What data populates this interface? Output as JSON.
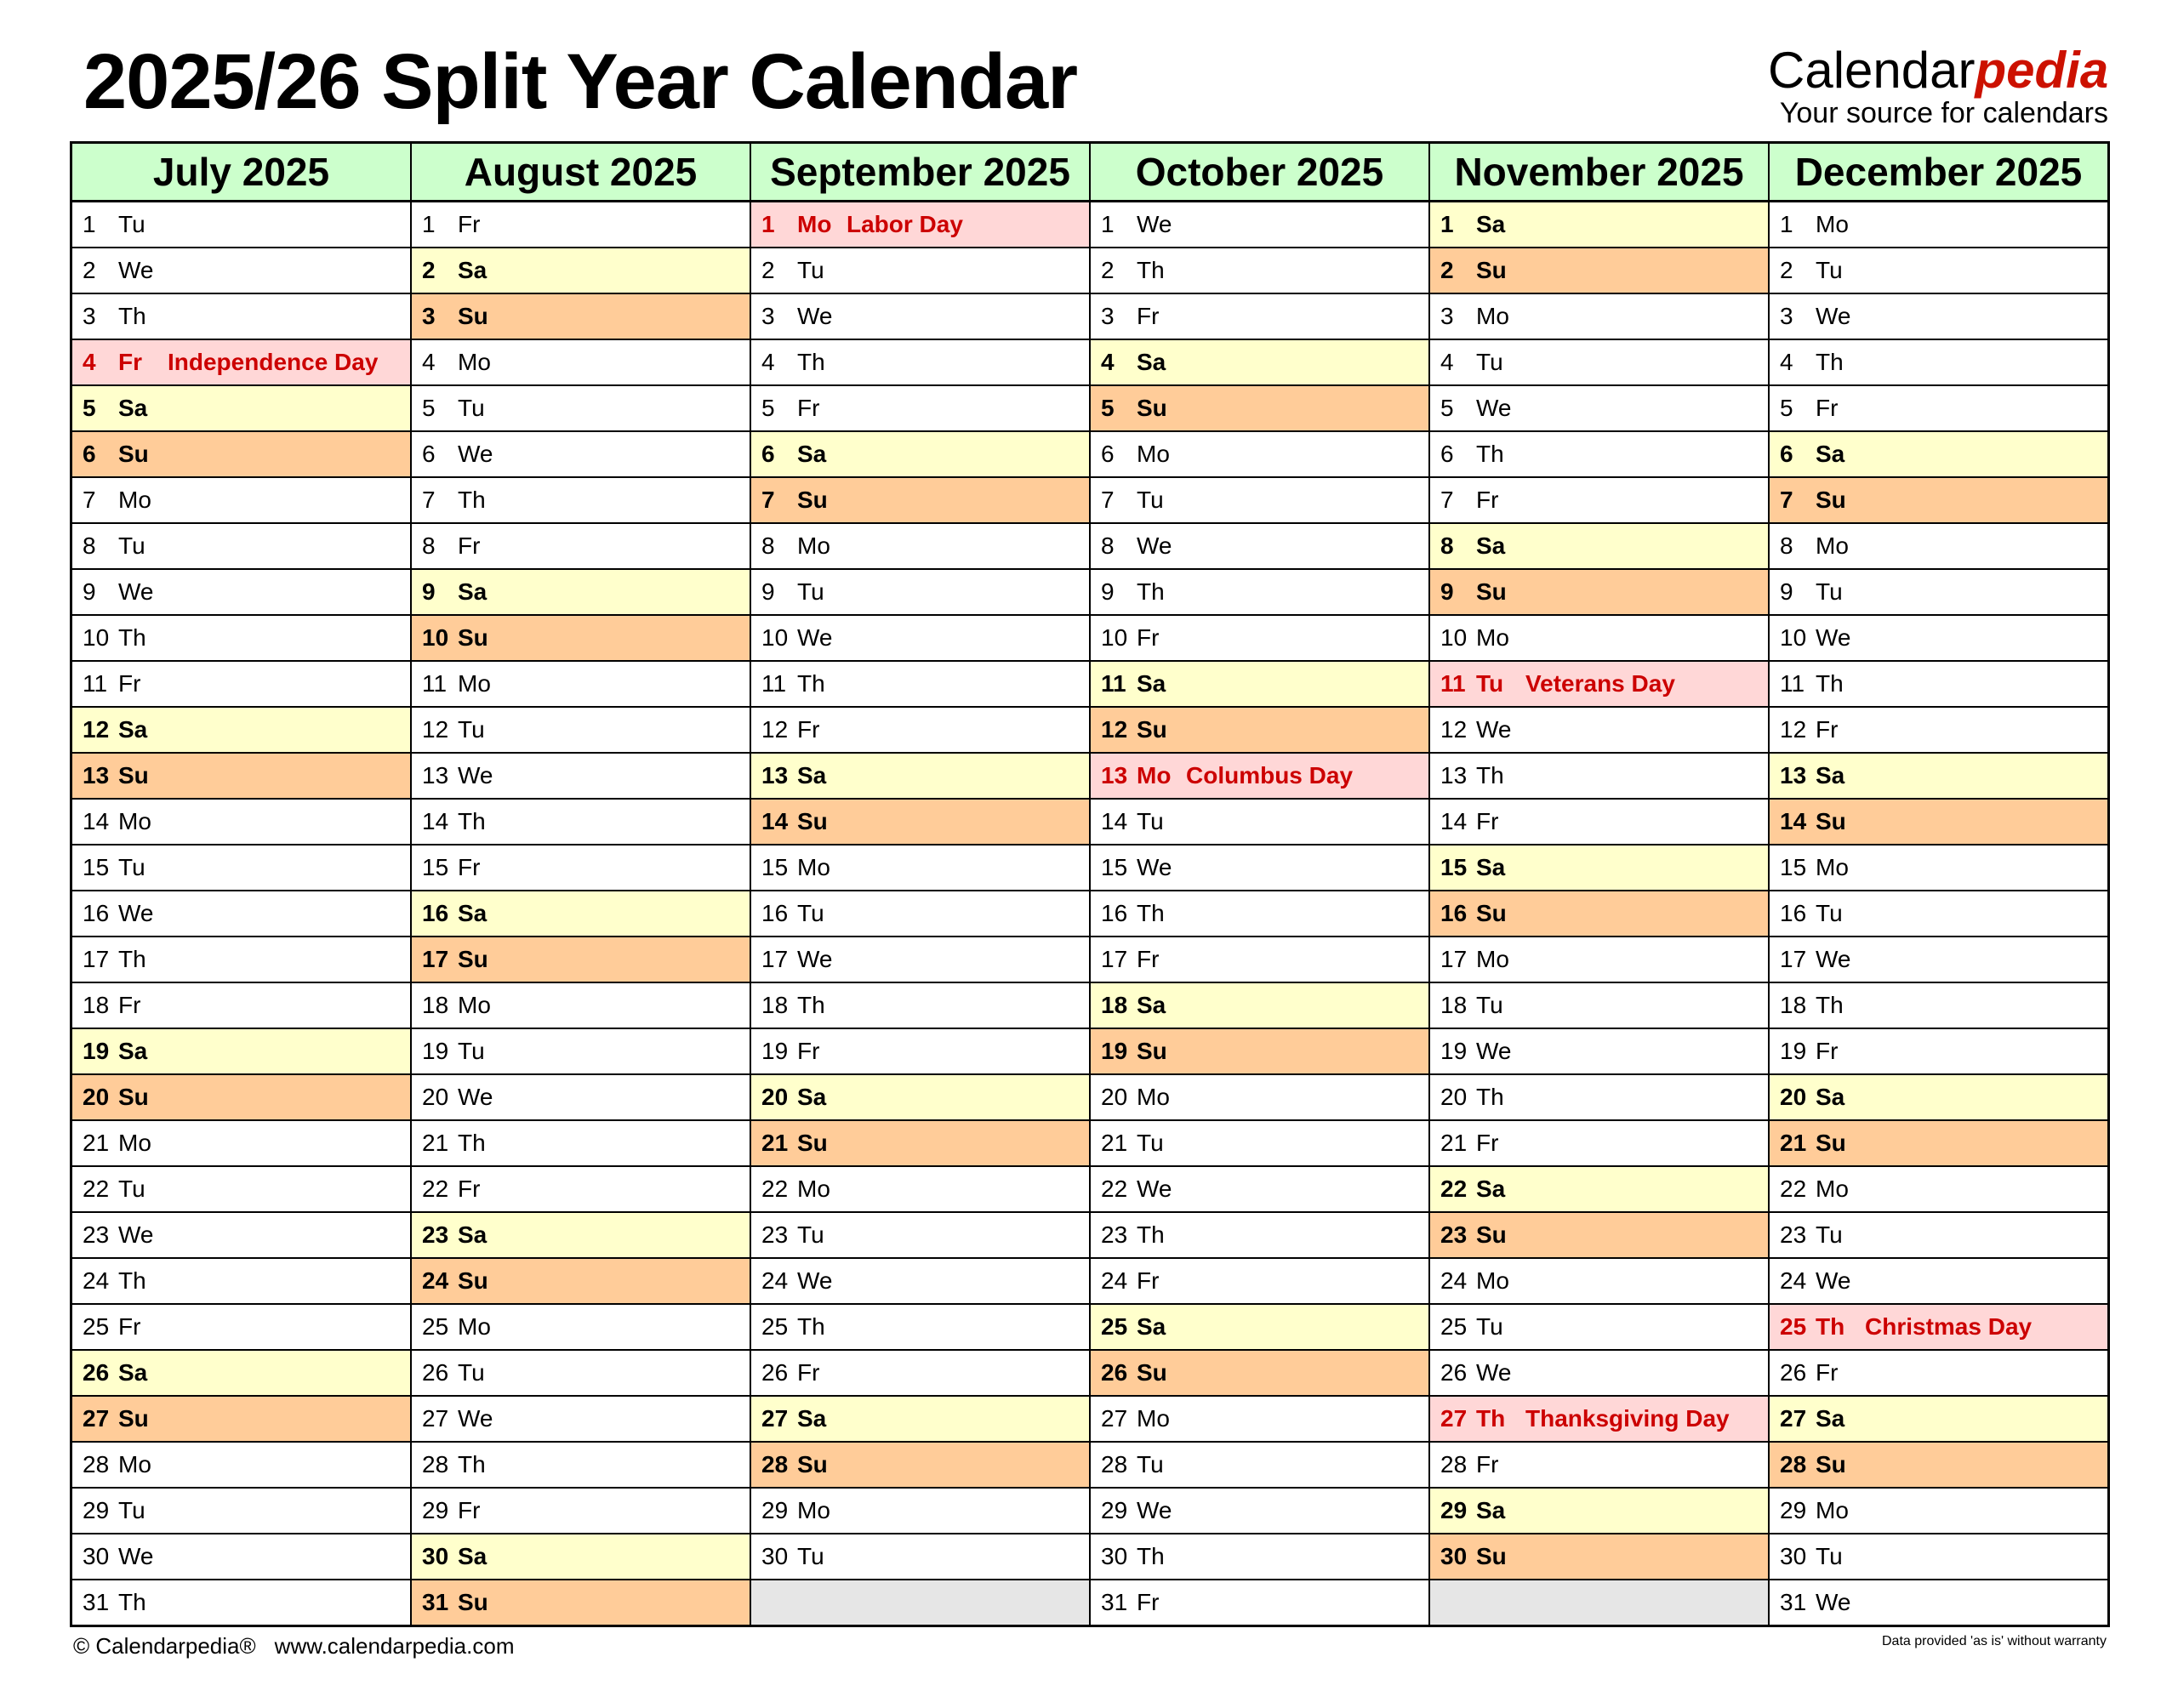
{
  "title": "2025/26 Split Year Calendar",
  "logo": {
    "main": "Calendar",
    "accent": "pedia",
    "tagline": "Your source for calendars"
  },
  "footer": {
    "copyright": "© Calendarpedia®",
    "url": "www.calendarpedia.com",
    "disclaimer": "Data provided 'as is' without warranty"
  },
  "colors": {
    "header": "#ccffcc",
    "saturday": "#ffffcc",
    "sunday": "#ffcc99",
    "holiday_bg": "#ffd7d7",
    "holiday_text": "#cc0000",
    "empty": "#e6e6e6"
  },
  "months": [
    {
      "name": "July 2025",
      "days": [
        [
          "1",
          "Tu"
        ],
        [
          "2",
          "We"
        ],
        [
          "3",
          "Th"
        ],
        [
          "4",
          "Fr"
        ],
        [
          "5",
          "Sa"
        ],
        [
          "6",
          "Su"
        ],
        [
          "7",
          "Mo"
        ],
        [
          "8",
          "Tu"
        ],
        [
          "9",
          "We"
        ],
        [
          "10",
          "Th"
        ],
        [
          "11",
          "Fr"
        ],
        [
          "12",
          "Sa"
        ],
        [
          "13",
          "Su"
        ],
        [
          "14",
          "Mo"
        ],
        [
          "15",
          "Tu"
        ],
        [
          "16",
          "We"
        ],
        [
          "17",
          "Th"
        ],
        [
          "18",
          "Fr"
        ],
        [
          "19",
          "Sa"
        ],
        [
          "20",
          "Su"
        ],
        [
          "21",
          "Mo"
        ],
        [
          "22",
          "Tu"
        ],
        [
          "23",
          "We"
        ],
        [
          "24",
          "Th"
        ],
        [
          "25",
          "Fr"
        ],
        [
          "26",
          "Sa"
        ],
        [
          "27",
          "Su"
        ],
        [
          "28",
          "Mo"
        ],
        [
          "29",
          "Tu"
        ],
        [
          "30",
          "We"
        ],
        [
          "31",
          "Th"
        ]
      ],
      "holidays": {
        "4": "Independence Day"
      }
    },
    {
      "name": "August 2025",
      "days": [
        [
          "1",
          "Fr"
        ],
        [
          "2",
          "Sa"
        ],
        [
          "3",
          "Su"
        ],
        [
          "4",
          "Mo"
        ],
        [
          "5",
          "Tu"
        ],
        [
          "6",
          "We"
        ],
        [
          "7",
          "Th"
        ],
        [
          "8",
          "Fr"
        ],
        [
          "9",
          "Sa"
        ],
        [
          "10",
          "Su"
        ],
        [
          "11",
          "Mo"
        ],
        [
          "12",
          "Tu"
        ],
        [
          "13",
          "We"
        ],
        [
          "14",
          "Th"
        ],
        [
          "15",
          "Fr"
        ],
        [
          "16",
          "Sa"
        ],
        [
          "17",
          "Su"
        ],
        [
          "18",
          "Mo"
        ],
        [
          "19",
          "Tu"
        ],
        [
          "20",
          "We"
        ],
        [
          "21",
          "Th"
        ],
        [
          "22",
          "Fr"
        ],
        [
          "23",
          "Sa"
        ],
        [
          "24",
          "Su"
        ],
        [
          "25",
          "Mo"
        ],
        [
          "26",
          "Tu"
        ],
        [
          "27",
          "We"
        ],
        [
          "28",
          "Th"
        ],
        [
          "29",
          "Fr"
        ],
        [
          "30",
          "Sa"
        ],
        [
          "31",
          "Su"
        ]
      ],
      "holidays": {}
    },
    {
      "name": "September 2025",
      "days": [
        [
          "1",
          "Mo"
        ],
        [
          "2",
          "Tu"
        ],
        [
          "3",
          "We"
        ],
        [
          "4",
          "Th"
        ],
        [
          "5",
          "Fr"
        ],
        [
          "6",
          "Sa"
        ],
        [
          "7",
          "Su"
        ],
        [
          "8",
          "Mo"
        ],
        [
          "9",
          "Tu"
        ],
        [
          "10",
          "We"
        ],
        [
          "11",
          "Th"
        ],
        [
          "12",
          "Fr"
        ],
        [
          "13",
          "Sa"
        ],
        [
          "14",
          "Su"
        ],
        [
          "15",
          "Mo"
        ],
        [
          "16",
          "Tu"
        ],
        [
          "17",
          "We"
        ],
        [
          "18",
          "Th"
        ],
        [
          "19",
          "Fr"
        ],
        [
          "20",
          "Sa"
        ],
        [
          "21",
          "Su"
        ],
        [
          "22",
          "Mo"
        ],
        [
          "23",
          "Tu"
        ],
        [
          "24",
          "We"
        ],
        [
          "25",
          "Th"
        ],
        [
          "26",
          "Fr"
        ],
        [
          "27",
          "Sa"
        ],
        [
          "28",
          "Su"
        ],
        [
          "29",
          "Mo"
        ],
        [
          "30",
          "Tu"
        ]
      ],
      "holidays": {
        "1": "Labor Day"
      }
    },
    {
      "name": "October 2025",
      "days": [
        [
          "1",
          "We"
        ],
        [
          "2",
          "Th"
        ],
        [
          "3",
          "Fr"
        ],
        [
          "4",
          "Sa"
        ],
        [
          "5",
          "Su"
        ],
        [
          "6",
          "Mo"
        ],
        [
          "7",
          "Tu"
        ],
        [
          "8",
          "We"
        ],
        [
          "9",
          "Th"
        ],
        [
          "10",
          "Fr"
        ],
        [
          "11",
          "Sa"
        ],
        [
          "12",
          "Su"
        ],
        [
          "13",
          "Mo"
        ],
        [
          "14",
          "Tu"
        ],
        [
          "15",
          "We"
        ],
        [
          "16",
          "Th"
        ],
        [
          "17",
          "Fr"
        ],
        [
          "18",
          "Sa"
        ],
        [
          "19",
          "Su"
        ],
        [
          "20",
          "Mo"
        ],
        [
          "21",
          "Tu"
        ],
        [
          "22",
          "We"
        ],
        [
          "23",
          "Th"
        ],
        [
          "24",
          "Fr"
        ],
        [
          "25",
          "Sa"
        ],
        [
          "26",
          "Su"
        ],
        [
          "27",
          "Mo"
        ],
        [
          "28",
          "Tu"
        ],
        [
          "29",
          "We"
        ],
        [
          "30",
          "Th"
        ],
        [
          "31",
          "Fr"
        ]
      ],
      "holidays": {
        "13": "Columbus Day"
      }
    },
    {
      "name": "November 2025",
      "days": [
        [
          "1",
          "Sa"
        ],
        [
          "2",
          "Su"
        ],
        [
          "3",
          "Mo"
        ],
        [
          "4",
          "Tu"
        ],
        [
          "5",
          "We"
        ],
        [
          "6",
          "Th"
        ],
        [
          "7",
          "Fr"
        ],
        [
          "8",
          "Sa"
        ],
        [
          "9",
          "Su"
        ],
        [
          "10",
          "Mo"
        ],
        [
          "11",
          "Tu"
        ],
        [
          "12",
          "We"
        ],
        [
          "13",
          "Th"
        ],
        [
          "14",
          "Fr"
        ],
        [
          "15",
          "Sa"
        ],
        [
          "16",
          "Su"
        ],
        [
          "17",
          "Mo"
        ],
        [
          "18",
          "Tu"
        ],
        [
          "19",
          "We"
        ],
        [
          "20",
          "Th"
        ],
        [
          "21",
          "Fr"
        ],
        [
          "22",
          "Sa"
        ],
        [
          "23",
          "Su"
        ],
        [
          "24",
          "Mo"
        ],
        [
          "25",
          "Tu"
        ],
        [
          "26",
          "We"
        ],
        [
          "27",
          "Th"
        ],
        [
          "28",
          "Fr"
        ],
        [
          "29",
          "Sa"
        ],
        [
          "30",
          "Su"
        ]
      ],
      "holidays": {
        "11": "Veterans Day",
        "27": "Thanksgiving Day"
      }
    },
    {
      "name": "December 2025",
      "days": [
        [
          "1",
          "Mo"
        ],
        [
          "2",
          "Tu"
        ],
        [
          "3",
          "We"
        ],
        [
          "4",
          "Th"
        ],
        [
          "5",
          "Fr"
        ],
        [
          "6",
          "Sa"
        ],
        [
          "7",
          "Su"
        ],
        [
          "8",
          "Mo"
        ],
        [
          "9",
          "Tu"
        ],
        [
          "10",
          "We"
        ],
        [
          "11",
          "Th"
        ],
        [
          "12",
          "Fr"
        ],
        [
          "13",
          "Sa"
        ],
        [
          "14",
          "Su"
        ],
        [
          "15",
          "Mo"
        ],
        [
          "16",
          "Tu"
        ],
        [
          "17",
          "We"
        ],
        [
          "18",
          "Th"
        ],
        [
          "19",
          "Fr"
        ],
        [
          "20",
          "Sa"
        ],
        [
          "21",
          "Su"
        ],
        [
          "22",
          "Mo"
        ],
        [
          "23",
          "Tu"
        ],
        [
          "24",
          "We"
        ],
        [
          "25",
          "Th"
        ],
        [
          "26",
          "Fr"
        ],
        [
          "27",
          "Sa"
        ],
        [
          "28",
          "Su"
        ],
        [
          "29",
          "Mo"
        ],
        [
          "30",
          "Tu"
        ],
        [
          "31",
          "We"
        ]
      ],
      "holidays": {
        "25": "Christmas Day"
      }
    }
  ]
}
